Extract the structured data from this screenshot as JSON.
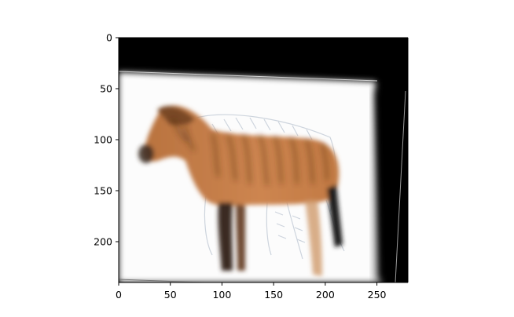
{
  "chart_data": {
    "type": "image",
    "title": "",
    "xlabel": "",
    "ylabel": "",
    "xlim": [
      0,
      280
    ],
    "ylim": [
      240,
      0
    ],
    "x_ticks": [
      0,
      50,
      100,
      150,
      200,
      250
    ],
    "y_ticks": [
      0,
      50,
      100,
      150,
      200
    ],
    "grid": false,
    "image_content": "blurred composite of a horse with tiger-striped orange coat on a white, slightly rotated background panel; black fill in the top and right uncovered regions",
    "colors": {
      "background_fill": "#000000",
      "panel": "#fcfcfc",
      "coat": "#c27a43",
      "stripe": "#4a2a15",
      "shadow": "#3a2a22"
    }
  }
}
